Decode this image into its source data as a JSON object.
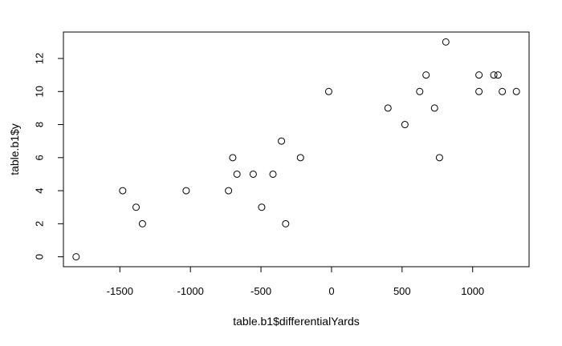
{
  "chart_data": {
    "type": "scatter",
    "title": "",
    "xlabel": "table.b1$differentialYards",
    "ylabel": "table.b1$y",
    "xlim": [
      -1900,
      1400
    ],
    "ylim": [
      -0.6,
      13.6
    ],
    "xticks": [
      -1500,
      -1000,
      -500,
      0,
      500,
      1000
    ],
    "xtick_labels": [
      "-1500",
      "-1000",
      "-500",
      "0",
      "500",
      "1000"
    ],
    "yticks": [
      0,
      2,
      4,
      6,
      8,
      10,
      12
    ],
    "ytick_labels": [
      "0",
      "2",
      "4",
      "6",
      "8",
      "10",
      "12"
    ],
    "grid": false,
    "marker": "open-circle",
    "colors": {
      "points": "#000000",
      "axes": "#000000",
      "background": "#ffffff"
    },
    "points": [
      {
        "x": -1810,
        "y": 0
      },
      {
        "x": -1480,
        "y": 4
      },
      {
        "x": -1385,
        "y": 3
      },
      {
        "x": -1340,
        "y": 2
      },
      {
        "x": -1030,
        "y": 4
      },
      {
        "x": -730,
        "y": 4
      },
      {
        "x": -700,
        "y": 6
      },
      {
        "x": -670,
        "y": 5
      },
      {
        "x": -555,
        "y": 5
      },
      {
        "x": -495,
        "y": 3
      },
      {
        "x": -415,
        "y": 5
      },
      {
        "x": -355,
        "y": 7
      },
      {
        "x": -325,
        "y": 2
      },
      {
        "x": -220,
        "y": 6
      },
      {
        "x": -20,
        "y": 10
      },
      {
        "x": 400,
        "y": 9
      },
      {
        "x": 520,
        "y": 8
      },
      {
        "x": 625,
        "y": 10
      },
      {
        "x": 670,
        "y": 11
      },
      {
        "x": 730,
        "y": 9
      },
      {
        "x": 765,
        "y": 6
      },
      {
        "x": 810,
        "y": 13
      },
      {
        "x": 1045,
        "y": 11
      },
      {
        "x": 1045,
        "y": 10
      },
      {
        "x": 1150,
        "y": 11
      },
      {
        "x": 1180,
        "y": 11
      },
      {
        "x": 1210,
        "y": 10
      },
      {
        "x": 1310,
        "y": 10
      }
    ]
  }
}
